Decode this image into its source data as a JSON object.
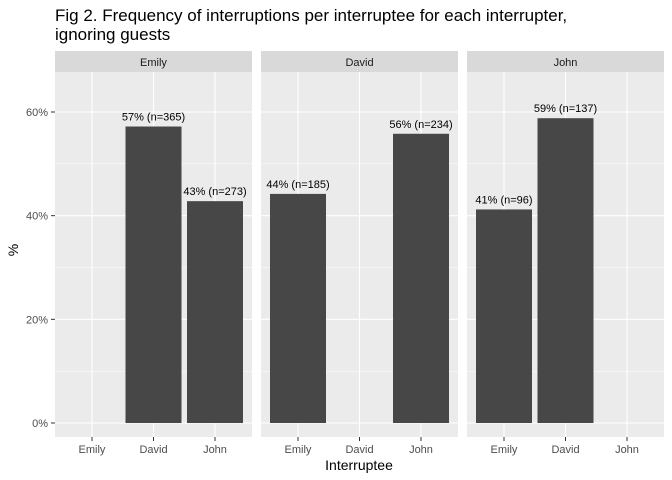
{
  "chart_data": {
    "type": "bar",
    "title_lines": [
      "Fig 2. Frequency of interruptions per interruptee for each interrupter,",
      "ignoring guests"
    ],
    "xlabel": "Interruptee",
    "ylabel": "%",
    "categories": [
      "Emily",
      "David",
      "John"
    ],
    "ylim": [
      0,
      0.7
    ],
    "yticks": [
      0,
      0.2,
      0.4,
      0.6
    ],
    "ytick_labels": [
      "0%",
      "20%",
      "40%",
      "60%"
    ],
    "grid": true,
    "bar_color": "#474747",
    "panel_background": "#ebebeb",
    "strip_background": "#d9d9d9",
    "grid_color": "#ffffff",
    "facets": [
      {
        "name": "Emily",
        "values": [
          null,
          0.572,
          0.428
        ],
        "labels": [
          "",
          "57% (n=365)",
          "43% (n=273)"
        ]
      },
      {
        "name": "David",
        "values": [
          0.442,
          null,
          0.558
        ],
        "labels": [
          "44% (n=185)",
          "",
          "56% (n=234)"
        ]
      },
      {
        "name": "John",
        "values": [
          0.412,
          0.588,
          null
        ],
        "labels": [
          "41% (n=96)",
          "59% (n=137)",
          ""
        ]
      }
    ]
  }
}
